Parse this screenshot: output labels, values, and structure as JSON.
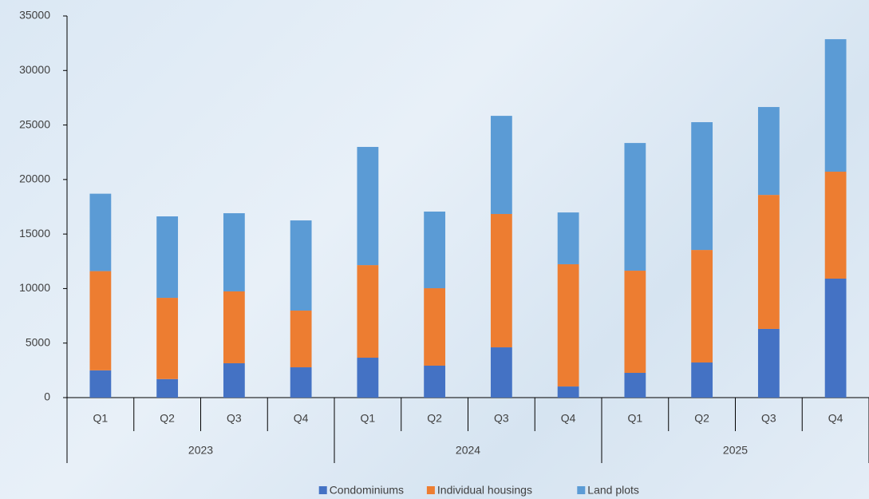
{
  "chart_data": {
    "type": "stacked_bar",
    "categories": [
      "Q1",
      "Q2",
      "Q3",
      "Q4",
      "Q1",
      "Q2",
      "Q3",
      "Q4",
      "Q1",
      "Q2",
      "Q3",
      "Q4"
    ],
    "groups": [
      "2023",
      "2024",
      "2025"
    ],
    "series": [
      {
        "name": "Condominiums",
        "color": "#4472c4",
        "values": [
          2500,
          1700,
          3150,
          2780,
          3660,
          2930,
          4610,
          1020,
          2270,
          3220,
          6300,
          10910
        ]
      },
      {
        "name": "Individual housings",
        "color": "#ed7d31",
        "values": [
          9100,
          7450,
          6590,
          5200,
          8490,
          7100,
          12230,
          11210,
          9370,
          10320,
          12290,
          9810
        ]
      },
      {
        "name": "Land plots",
        "color": "#5b9bd5",
        "values": [
          7100,
          7470,
          7170,
          8270,
          10840,
          7030,
          9000,
          4750,
          11710,
          11720,
          8060,
          12150
        ]
      }
    ],
    "ylim": [
      0,
      35000
    ],
    "yticks": [
      0,
      5000,
      10000,
      15000,
      20000,
      25000,
      30000,
      35000
    ],
    "legend": "bottom",
    "grid": false
  }
}
